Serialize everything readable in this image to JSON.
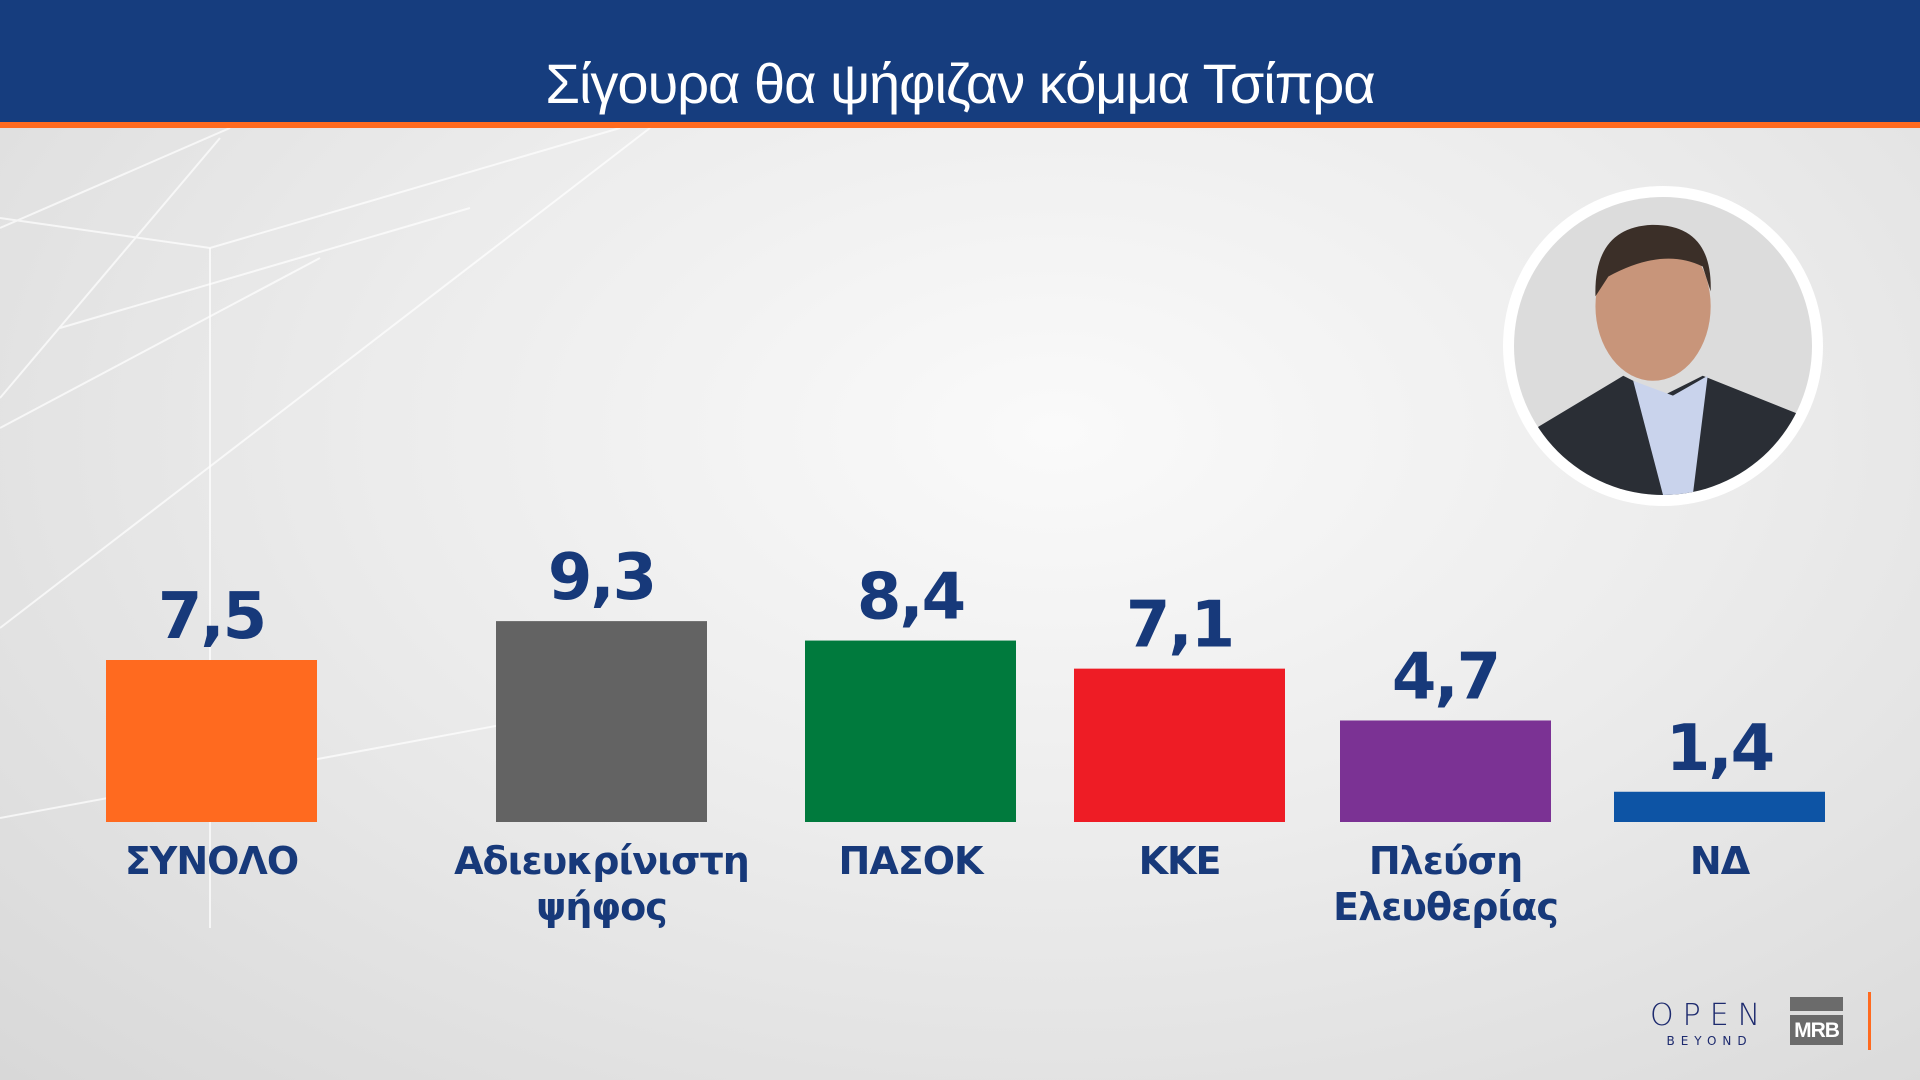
{
  "header": {
    "title": "Σίγουρα θα ψήφιζαν κόμμα Τσίπρα"
  },
  "colors": {
    "header": "#163d7e",
    "accent": "#ff6a1f",
    "text": "#17397a"
  },
  "photo": {
    "icon": "politician-portrait"
  },
  "logos": {
    "open_main": "OPEN",
    "open_sub": "BEYOND",
    "mrb": "MRB"
  },
  "chart_data": {
    "type": "bar",
    "title": "Σίγουρα θα ψήφιζαν κόμμα Τσίπρα",
    "categories": [
      "ΣΥΝΟΛΟ",
      "Αδιευκρίνιστη ψήφος",
      "ΠΑΣΟΚ",
      "ΚΚΕ",
      "Πλεύση Ελευθερίας",
      "ΝΔ"
    ],
    "category_lines": [
      [
        "ΣΥΝΟΛΟ"
      ],
      [
        "Αδιευκρίνιστη",
        "ψήφος"
      ],
      [
        "ΠΑΣΟΚ"
      ],
      [
        "ΚΚΕ"
      ],
      [
        "Πλεύση",
        "Ελευθερίας"
      ],
      [
        "ΝΔ"
      ]
    ],
    "values": [
      7.5,
      9.3,
      8.4,
      7.1,
      4.7,
      1.4
    ],
    "value_labels": [
      "7,5",
      "9,3",
      "8,4",
      "7,1",
      "4,7",
      "1,4"
    ],
    "bar_colors": [
      "#ff6a1f",
      "#636363",
      "#007a3d",
      "#ee1c25",
      "#7b3294",
      "#0d54a5"
    ],
    "xlabel": "",
    "ylabel": "",
    "grid": false,
    "axes_visible": false
  }
}
